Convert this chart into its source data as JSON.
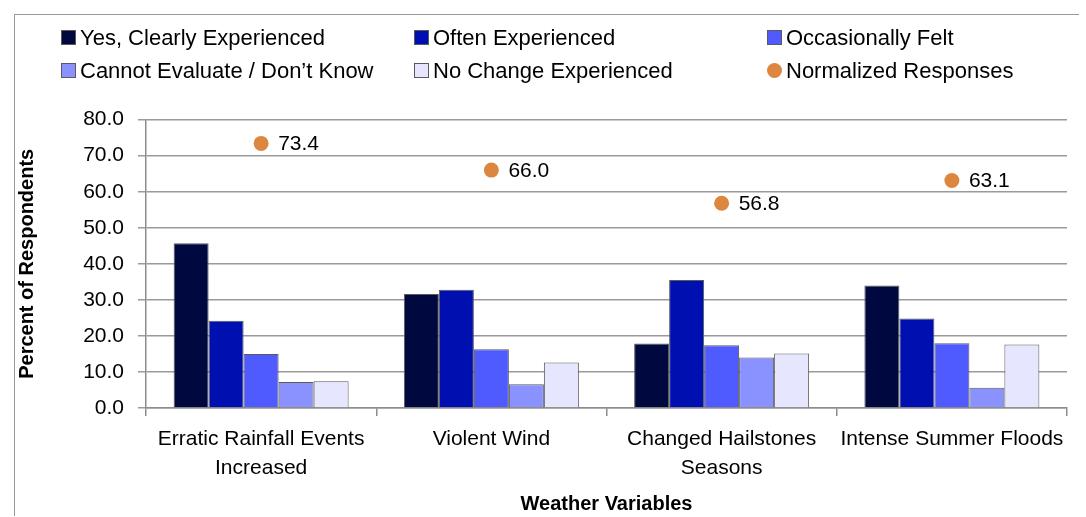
{
  "chart_data": {
    "type": "bar",
    "xlabel": "Weather Variables",
    "ylabel": "Percent of Respondents",
    "categories": [
      "Erratic Rainfall Events Increased",
      "Violent Wind",
      "Changed Hailstones Seasons",
      "Intense Summer Floods"
    ],
    "series": [
      {
        "name": "Yes, Clearly Experienced",
        "color": "#000840",
        "values": [
          45.7,
          31.6,
          17.9,
          34.0
        ]
      },
      {
        "name": "Often Experienced",
        "color": "#0010b0",
        "values": [
          24.2,
          32.8,
          35.5,
          24.8
        ]
      },
      {
        "name": "Occasionally Felt",
        "color": "#4f5aff",
        "values": [
          15.0,
          16.3,
          17.4,
          18.0
        ]
      },
      {
        "name": "Cannot Evaluate / Don’t Know",
        "color": "#8a92ff",
        "values": [
          7.2,
          6.6,
          14.0,
          5.6
        ]
      },
      {
        "name": "No Change Experienced",
        "color": "#e6e7ff",
        "values": [
          7.4,
          12.6,
          15.1,
          17.6
        ]
      },
      {
        "name": "Normalized Responses",
        "type": "scatter",
        "color": "#dd8640",
        "marker": "circle",
        "x": [
          "Erratic Rainfall Events Increased",
          "Violent Wind",
          "Changed Hailstones Seasons",
          "Intense Summer Floods"
        ],
        "values": [
          73.4,
          66.0,
          56.8,
          63.1
        ],
        "value_labels": [
          "73.4",
          "66.0",
          "56.8",
          "63.1"
        ]
      }
    ],
    "ylim": [
      0,
      80
    ],
    "yticks": [
      {
        "value": 0,
        "label": "0.0"
      },
      {
        "value": 10,
        "label": "10.0"
      },
      {
        "value": 20,
        "label": "20.0"
      },
      {
        "value": 30,
        "label": "30.0"
      },
      {
        "value": 40,
        "label": "40.0"
      },
      {
        "value": 50,
        "label": "50.0"
      },
      {
        "value": 60,
        "label": "60.0"
      },
      {
        "value": 70,
        "label": "70.0"
      },
      {
        "value": 80,
        "label": "80.0"
      }
    ],
    "grid": "y",
    "legend": "top"
  }
}
